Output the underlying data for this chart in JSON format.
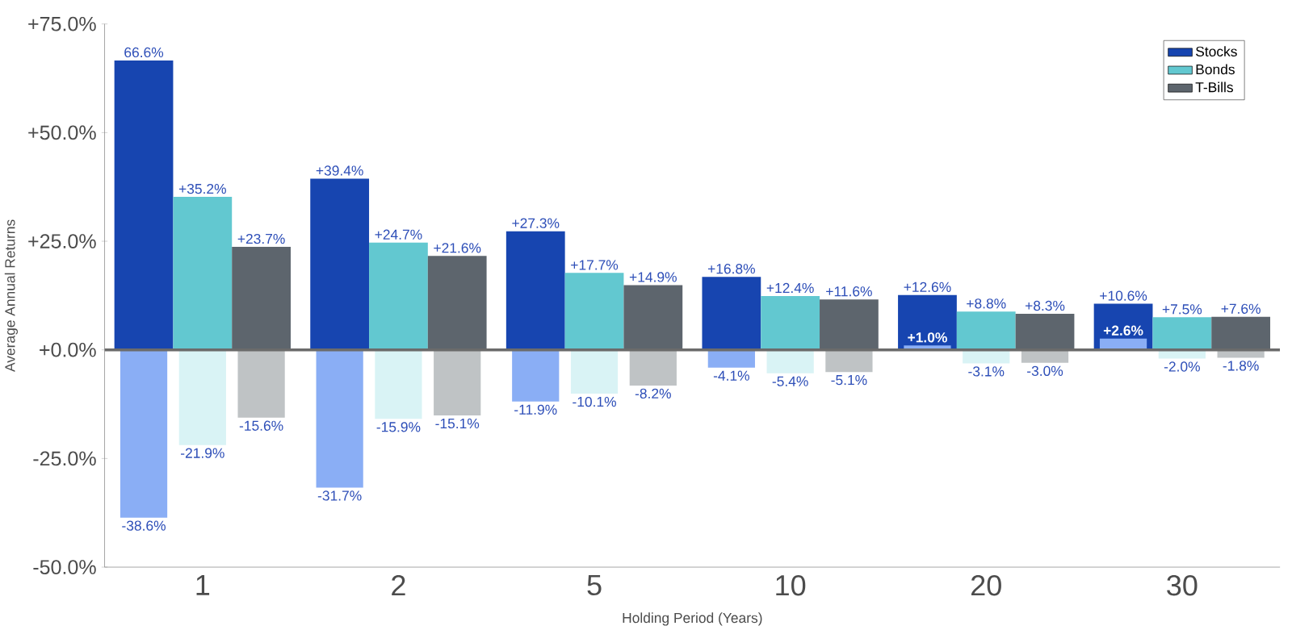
{
  "chart_data": {
    "type": "bar",
    "xlabel": "Holding Period (Years)",
    "ylabel": "Average Annual Returns",
    "categories": [
      "1",
      "2",
      "5",
      "10",
      "20",
      "30"
    ],
    "series": [
      {
        "name": "Stocks",
        "color": "#1745b0",
        "values": [
          66.6,
          39.4,
          27.3,
          16.8,
          12.6,
          10.6
        ],
        "value_labels": [
          "66.6%",
          "+39.4%",
          "+27.3%",
          "+16.8%",
          "+12.6%",
          "+10.6%"
        ]
      },
      {
        "color": "#8aaef5",
        "values": [
          -38.6,
          -31.7,
          -11.9,
          -4.1,
          1.0,
          2.6
        ],
        "value_labels": [
          "-38.6%",
          "-31.7%",
          "-11.9%",
          "-4.1%",
          "+1.0%",
          "+2.6%"
        ]
      },
      {
        "name": "Bonds",
        "color": "#62c8d0",
        "values": [
          35.2,
          24.7,
          17.7,
          12.4,
          8.8,
          7.5
        ],
        "value_labels": [
          "+35.2%",
          "+24.7%",
          "+17.7%",
          "+12.4%",
          "+8.8%",
          "+7.5%"
        ]
      },
      {
        "color": "#d9f3f5",
        "values": [
          -21.9,
          -15.9,
          -10.1,
          -5.4,
          -3.1,
          -2.0
        ],
        "value_labels": [
          "-21.9%",
          "-15.9%",
          "-10.1%",
          "-5.4%",
          "-3.1%",
          "-2.0%"
        ]
      },
      {
        "name": "T-Bills",
        "color": "#5d656d",
        "values": [
          23.7,
          21.6,
          14.9,
          11.6,
          8.3,
          7.6
        ],
        "value_labels": [
          "+23.7%",
          "+21.6%",
          "+14.9%",
          "+11.6%",
          "+8.3%",
          "+7.6%"
        ]
      },
      {
        "color": "#bfc3c5",
        "values": [
          -15.6,
          -15.1,
          -8.2,
          -5.1,
          -3.0,
          -1.8
        ],
        "value_labels": [
          "-15.6%",
          "-15.1%",
          "-8.2%",
          "-5.1%",
          "-3.0%",
          "-1.8%"
        ]
      }
    ],
    "ylim": [
      -50,
      75
    ],
    "yticks": [
      {
        "value": -50,
        "label": "-50.0%"
      },
      {
        "value": -25,
        "label": "-25.0%"
      },
      {
        "value": 0,
        "label": "+0.0%"
      },
      {
        "value": 25,
        "label": "+25.0%"
      },
      {
        "value": 50,
        "label": "+50.0%"
      },
      {
        "value": 75,
        "label": "+75.0%"
      }
    ],
    "ref_lines": [
      {
        "axis": "y",
        "value": 0,
        "color": "#6b6b6b"
      }
    ],
    "legend": "top right",
    "grid": false
  }
}
